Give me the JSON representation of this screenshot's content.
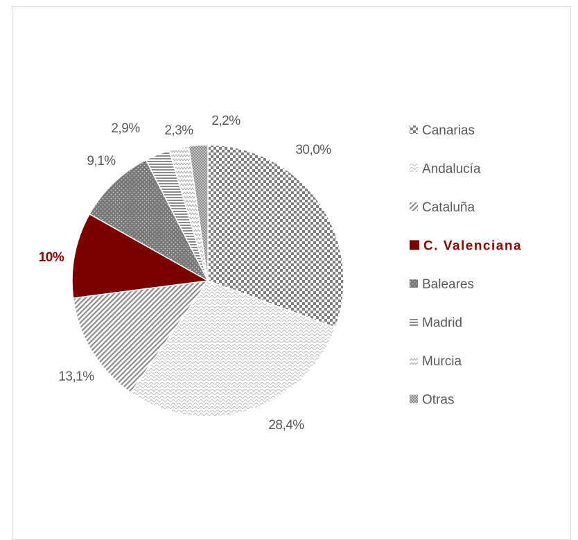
{
  "chart_data": {
    "type": "pie",
    "title": "",
    "highlight": "C. Valenciana",
    "start_angle_deg": 0,
    "direction": "clockwise",
    "legend_position": "right",
    "slices": [
      {
        "name": "Canarias",
        "value": 30.0,
        "label": "30,0%",
        "pattern": "checker",
        "color": "#7f7f7f"
      },
      {
        "name": "Andalucía",
        "value": 28.4,
        "label": "28,4%",
        "pattern": "wave",
        "color": "#c8c8c8"
      },
      {
        "name": "Cataluña",
        "value": 13.1,
        "label": "13,1%",
        "pattern": "diagonal",
        "color": "#8c8c8c"
      },
      {
        "name": "C. Valenciana",
        "value": 10.0,
        "label": "10%",
        "pattern": "solid",
        "color": "#7b0000"
      },
      {
        "name": "Baleares",
        "value": 9.1,
        "label": "9,1%",
        "pattern": "dots",
        "color": "#808080"
      },
      {
        "name": "Madrid",
        "value": 2.9,
        "label": "2,9%",
        "pattern": "hlines",
        "color": "#8c8c8c"
      },
      {
        "name": "Murcia",
        "value": 2.3,
        "label": "2,3%",
        "pattern": "zigzag",
        "color": "#b4b4b4"
      },
      {
        "name": "Otras",
        "value": 2.2,
        "label": "2,2%",
        "pattern": "grid",
        "color": "#9a9a9a"
      }
    ]
  }
}
